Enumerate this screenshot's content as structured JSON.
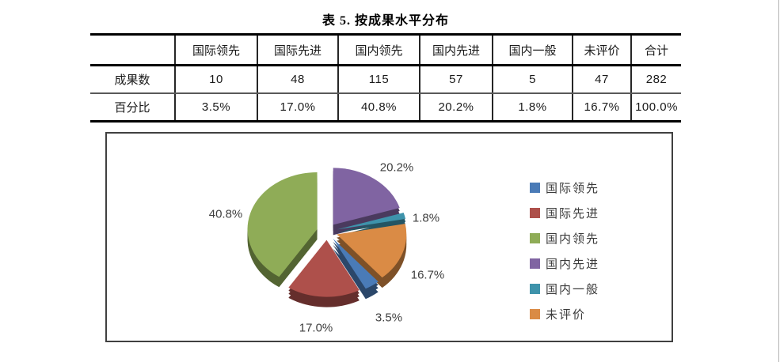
{
  "page": {
    "title": "表 5. 按成果水平分布"
  },
  "table": {
    "corner_label": "",
    "columns": [
      "国际领先",
      "国际先进",
      "国内领先",
      "国内先进",
      "国内一般",
      "未评价",
      "合计"
    ],
    "rows": [
      {
        "label": "成果数",
        "values": [
          "10",
          "48",
          "115",
          "57",
          "5",
          "47",
          "282"
        ]
      },
      {
        "label": "百分比",
        "values": [
          "3.5%",
          "17.0%",
          "40.8%",
          "20.2%",
          "1.8%",
          "16.7%",
          "100.0%"
        ]
      }
    ]
  },
  "chart_data": {
    "type": "pie",
    "title": "",
    "categories": [
      "国际领先",
      "国际先进",
      "国内领先",
      "国内先进",
      "国内一般",
      "未评价"
    ],
    "values": [
      3.5,
      17.0,
      40.8,
      20.2,
      1.8,
      16.7
    ],
    "value_labels": [
      "3.5%",
      "17.0%",
      "40.8%",
      "20.2%",
      "1.8%",
      "16.7%"
    ],
    "colors": [
      "#4A7BB7",
      "#AE504B",
      "#8FAC57",
      "#8064A2",
      "#3E93AB",
      "#DA8B45"
    ],
    "plot_order": [
      3,
      4,
      5,
      0,
      1,
      2
    ],
    "start_angle_deg": 0,
    "clockwise": true,
    "style": "3d-exploded-pie",
    "labels_show": "percent",
    "legend_position": "right",
    "grid": false
  }
}
